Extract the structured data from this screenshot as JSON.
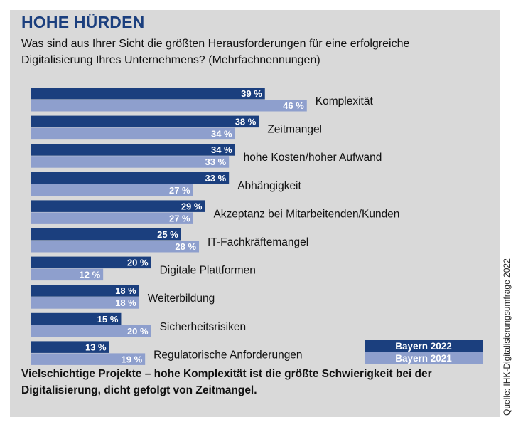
{
  "title": "HOHE HÜRDEN",
  "subtitle": "Was sind aus Ihrer Sicht die größten Herausforderungen für eine erfolgreiche Digitalisierung Ihres Unternehmens? (Mehrfachnennungen)",
  "footer": "Vielschichtige Projekte – hohe Komplexität ist die größte Schwierigkeit bei der Digitalisierung, dicht gefolgt von Zeitmangel.",
  "source": "Quelle: IHK-Digitalisierungsumfrage 2022",
  "colors": {
    "series_2022": "#1b3f7e",
    "series_2021": "#8e9fcd",
    "background": "#d9d9d9",
    "title": "#1b3f7e"
  },
  "chart_data": {
    "type": "bar",
    "orientation": "horizontal",
    "value_suffix": " %",
    "categories": [
      "Komplexität",
      "Zeitmangel",
      "hohe Kosten/hoher Aufwand",
      "Abhängigkeit",
      "Akzeptanz bei Mitarbeitenden/Kunden",
      "IT-Fachkräftemangel",
      "Digitale Plattformen",
      "Weiterbildung",
      "Sicherheitsrisiken",
      "Regulatorische Anforderungen"
    ],
    "series": [
      {
        "name": "Bayern 2022",
        "values": [
          39,
          38,
          34,
          33,
          29,
          25,
          20,
          18,
          15,
          13
        ]
      },
      {
        "name": "Bayern 2021",
        "values": [
          46,
          34,
          33,
          27,
          27,
          28,
          12,
          18,
          20,
          19
        ]
      }
    ],
    "legend_position": "bottom-right",
    "grid": false
  }
}
